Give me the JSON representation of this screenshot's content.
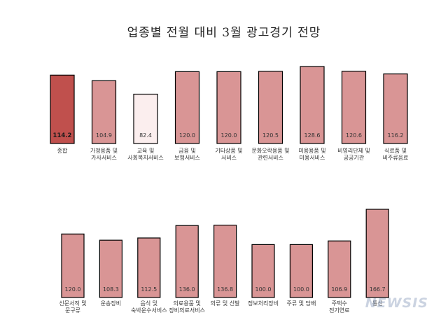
{
  "title": "업종별 전월 대비 3월 광고경기 전망",
  "watermark": "NEWSIS",
  "colors": {
    "bar_default": "#d99595",
    "bar_highlight": "#c0504d",
    "bar_low": "#fbeeee",
    "bar_stroke": "#000000"
  },
  "chart_data": [
    {
      "type": "bar",
      "categories": [
        [
          "종합"
        ],
        [
          "가정용품 및",
          "가사서비스"
        ],
        [
          "교육 및",
          "사회복지서비스"
        ],
        [
          "금융 및",
          "보험서비스"
        ],
        [
          "기타상품 및",
          "서비스"
        ],
        [
          "문화오락용품 및",
          "관련서비스"
        ],
        [
          "미용용품 및",
          "미용서비스"
        ],
        [
          "비영리단체 및",
          "공공기관"
        ],
        [
          "식료품 및",
          "비주류음료"
        ]
      ],
      "values": [
        114.2,
        104.9,
        82.4,
        120.0,
        120.0,
        120.5,
        128.6,
        120.6,
        116.2
      ],
      "value_labels": [
        "114.2",
        "104.9",
        "82.4",
        "120.0",
        "120.0",
        "120.5",
        "128.6",
        "120.6",
        "116.2"
      ]
    },
    {
      "type": "bar",
      "categories": [
        [
          "신문서적 및",
          "문구류"
        ],
        [
          "운송장비"
        ],
        [
          "음식 및",
          "숙박운수서비스"
        ],
        [
          "의료용품 및",
          "장비의료서비스"
        ],
        [
          "의류 및 신발"
        ],
        [
          "정보처리장비"
        ],
        [
          "주류 및 담배"
        ],
        [
          "주택수",
          "전기연료"
        ],
        [
          "통신"
        ]
      ],
      "values": [
        120.0,
        108.3,
        112.5,
        136.0,
        136.8,
        100.0,
        100.0,
        106.9,
        166.7
      ],
      "value_labels": [
        "120.0",
        "108.3",
        "112.5",
        "136.0",
        "136.8",
        "100.0",
        "100.0",
        "106.9",
        "166.7"
      ]
    }
  ]
}
